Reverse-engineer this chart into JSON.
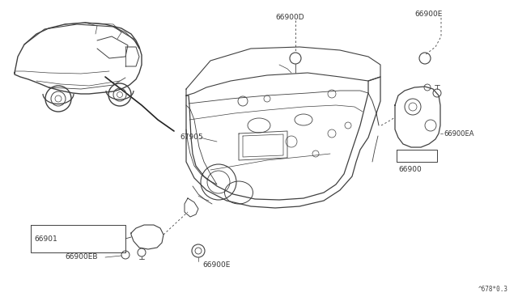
{
  "bg_color": "#ffffff",
  "line_color": "#404040",
  "diagram_code": "^678*0.3",
  "fig_width": 6.4,
  "fig_height": 3.72,
  "dpi": 100,
  "label_66900D": "66900D",
  "label_66900E_tr": "66900E",
  "label_67905": "67905",
  "label_66900EA": "66900EA",
  "label_66900": "66900",
  "label_66901": "66901",
  "label_66900EB": "66900EB",
  "label_66900E_bl": "66900E"
}
